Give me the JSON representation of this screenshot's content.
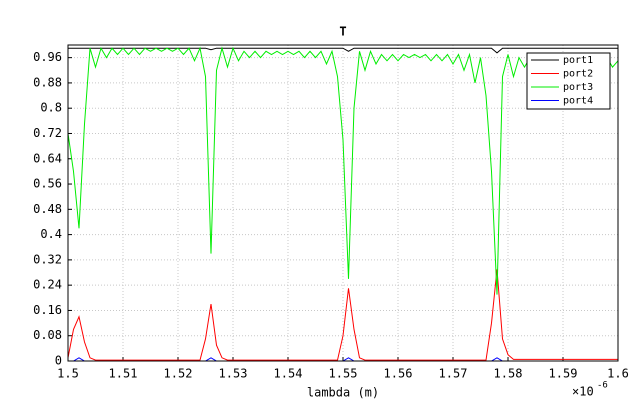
{
  "chart_data": {
    "type": "line",
    "title": "T",
    "x_label": "lambda (m)",
    "x_multiplier": {
      "base": "×10",
      "exponent": "-6"
    },
    "xlim": [
      1.5,
      1.6
    ],
    "ylim": [
      0,
      1
    ],
    "xticks": [
      1.5,
      1.51,
      1.52,
      1.53,
      1.54,
      1.55,
      1.56,
      1.57,
      1.58,
      1.59,
      1.6
    ],
    "yticks": [
      0,
      0.08,
      0.16,
      0.24,
      0.32,
      0.4,
      0.48,
      0.56,
      0.64,
      0.72,
      0.8,
      0.88,
      0.96
    ],
    "grid": true,
    "legend": "upper-right",
    "x": [
      1.5,
      1.501,
      1.502,
      1.503,
      1.504,
      1.505,
      1.506,
      1.507,
      1.508,
      1.509,
      1.51,
      1.511,
      1.512,
      1.513,
      1.514,
      1.515,
      1.516,
      1.517,
      1.518,
      1.519,
      1.52,
      1.521,
      1.522,
      1.523,
      1.524,
      1.525,
      1.526,
      1.527,
      1.528,
      1.529,
      1.53,
      1.531,
      1.532,
      1.533,
      1.534,
      1.535,
      1.536,
      1.537,
      1.538,
      1.539,
      1.54,
      1.541,
      1.542,
      1.543,
      1.544,
      1.545,
      1.546,
      1.547,
      1.548,
      1.549,
      1.55,
      1.551,
      1.552,
      1.553,
      1.554,
      1.555,
      1.556,
      1.557,
      1.558,
      1.559,
      1.56,
      1.561,
      1.562,
      1.563,
      1.564,
      1.565,
      1.566,
      1.567,
      1.568,
      1.569,
      1.57,
      1.571,
      1.572,
      1.573,
      1.574,
      1.575,
      1.576,
      1.577,
      1.578,
      1.579,
      1.58,
      1.581,
      1.582,
      1.583,
      1.584,
      1.585,
      1.586,
      1.587,
      1.588,
      1.589,
      1.59,
      1.591,
      1.592,
      1.593,
      1.594,
      1.595,
      1.596,
      1.597,
      1.598,
      1.599,
      1.6
    ],
    "series": [
      {
        "name": "port1",
        "color": "#000000",
        "values": [
          0.99,
          0.99,
          0.99,
          0.99,
          0.99,
          0.99,
          0.99,
          0.99,
          0.99,
          0.99,
          0.99,
          0.99,
          0.99,
          0.99,
          0.99,
          0.99,
          0.99,
          0.99,
          0.99,
          0.99,
          0.99,
          0.99,
          0.99,
          0.99,
          0.99,
          0.99,
          0.985,
          0.99,
          0.99,
          0.99,
          0.99,
          0.99,
          0.99,
          0.99,
          0.99,
          0.99,
          0.99,
          0.99,
          0.99,
          0.99,
          0.99,
          0.99,
          0.99,
          0.99,
          0.99,
          0.99,
          0.99,
          0.99,
          0.99,
          0.99,
          0.99,
          0.98,
          0.99,
          0.99,
          0.99,
          0.99,
          0.99,
          0.99,
          0.99,
          0.99,
          0.99,
          0.99,
          0.99,
          0.99,
          0.99,
          0.99,
          0.99,
          0.99,
          0.99,
          0.99,
          0.99,
          0.99,
          0.99,
          0.99,
          0.99,
          0.99,
          0.99,
          0.99,
          0.975,
          0.99,
          0.99,
          0.99,
          0.99,
          0.99,
          0.99,
          0.99,
          0.99,
          0.99,
          0.99,
          0.99,
          0.99,
          0.99,
          0.99,
          0.99,
          0.99,
          0.99,
          0.99,
          0.99,
          0.99,
          0.99,
          0.99
        ]
      },
      {
        "name": "port2",
        "color": "#ff0000",
        "values": [
          0.01,
          0.1,
          0.14,
          0.06,
          0.01,
          0.003,
          0.003,
          0.003,
          0.003,
          0.003,
          0.003,
          0.003,
          0.003,
          0.003,
          0.003,
          0.003,
          0.003,
          0.003,
          0.003,
          0.003,
          0.003,
          0.003,
          0.003,
          0.003,
          0.003,
          0.07,
          0.18,
          0.05,
          0.01,
          0.003,
          0.003,
          0.003,
          0.003,
          0.003,
          0.003,
          0.003,
          0.003,
          0.003,
          0.003,
          0.003,
          0.003,
          0.003,
          0.003,
          0.003,
          0.003,
          0.003,
          0.003,
          0.003,
          0.003,
          0.003,
          0.08,
          0.23,
          0.1,
          0.01,
          0.003,
          0.003,
          0.003,
          0.003,
          0.003,
          0.003,
          0.003,
          0.003,
          0.003,
          0.003,
          0.003,
          0.003,
          0.003,
          0.003,
          0.003,
          0.003,
          0.003,
          0.003,
          0.003,
          0.003,
          0.003,
          0.003,
          0.003,
          0.12,
          0.29,
          0.07,
          0.02,
          0.005,
          0.005,
          0.005,
          0.005,
          0.005,
          0.005,
          0.005,
          0.005,
          0.005,
          0.005,
          0.005,
          0.005,
          0.005,
          0.005,
          0.005,
          0.005,
          0.005,
          0.005,
          0.005,
          0.005
        ]
      },
      {
        "name": "port3",
        "color": "#00ee00",
        "values": [
          0.72,
          0.6,
          0.42,
          0.75,
          0.99,
          0.93,
          0.99,
          0.96,
          0.99,
          0.97,
          0.99,
          0.97,
          0.99,
          0.97,
          0.99,
          0.98,
          0.99,
          0.98,
          0.99,
          0.98,
          0.99,
          0.97,
          0.99,
          0.95,
          0.99,
          0.9,
          0.34,
          0.92,
          0.99,
          0.93,
          0.99,
          0.95,
          0.98,
          0.96,
          0.98,
          0.96,
          0.98,
          0.97,
          0.98,
          0.97,
          0.98,
          0.97,
          0.98,
          0.96,
          0.98,
          0.96,
          0.98,
          0.94,
          0.98,
          0.9,
          0.7,
          0.26,
          0.8,
          0.98,
          0.92,
          0.98,
          0.94,
          0.97,
          0.95,
          0.97,
          0.95,
          0.97,
          0.96,
          0.97,
          0.96,
          0.97,
          0.95,
          0.97,
          0.95,
          0.97,
          0.94,
          0.97,
          0.92,
          0.97,
          0.88,
          0.96,
          0.84,
          0.6,
          0.21,
          0.9,
          0.97,
          0.9,
          0.96,
          0.93,
          0.96,
          0.94,
          0.96,
          0.94,
          0.96,
          0.95,
          0.96,
          0.94,
          0.96,
          0.95,
          0.96,
          0.94,
          0.96,
          0.94,
          0.96,
          0.93,
          0.95
        ]
      },
      {
        "name": "port4",
        "color": "#0000ff",
        "values": [
          0,
          0,
          0.01,
          0,
          0,
          0,
          0,
          0,
          0,
          0,
          0,
          0,
          0,
          0,
          0,
          0,
          0,
          0,
          0,
          0,
          0,
          0,
          0,
          0,
          0,
          0,
          0.01,
          0,
          0,
          0,
          0,
          0,
          0,
          0,
          0,
          0,
          0,
          0,
          0,
          0,
          0,
          0,
          0,
          0,
          0,
          0,
          0,
          0,
          0,
          0,
          0,
          0.01,
          0,
          0,
          0,
          0,
          0,
          0,
          0,
          0,
          0,
          0,
          0,
          0,
          0,
          0,
          0,
          0,
          0,
          0,
          0,
          0,
          0,
          0,
          0,
          0,
          0,
          0,
          0.01,
          0,
          0,
          0,
          0,
          0,
          0,
          0,
          0,
          0,
          0,
          0,
          0,
          0,
          0,
          0,
          0,
          0,
          0,
          0,
          0,
          0,
          0
        ]
      }
    ]
  }
}
